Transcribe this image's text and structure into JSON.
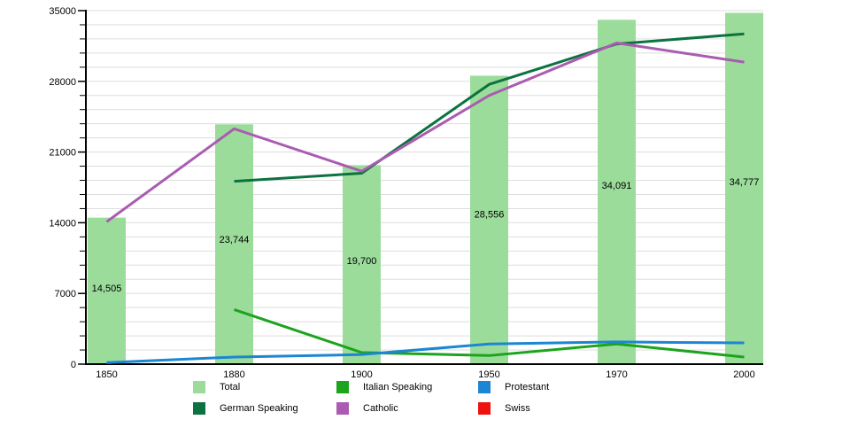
{
  "chart_data": {
    "type": "combo_bar_line",
    "title": "",
    "xlabel": "",
    "ylabel": "",
    "categories": [
      "1850",
      "1880",
      "1900",
      "1950",
      "1970",
      "2000"
    ],
    "bar_series": {
      "name": "Total",
      "color": "#9bdc9b",
      "values": [
        14505,
        23744,
        19700,
        28556,
        34091,
        34777
      ],
      "value_labels": [
        "14,505",
        "23,744",
        "19,700",
        "28,556",
        "34,091",
        "34,777"
      ]
    },
    "line_series": [
      {
        "name": "German Speaking",
        "color": "#0c7240",
        "values": [
          null,
          18100,
          18900,
          27700,
          31700,
          32700
        ]
      },
      {
        "name": "Italian Speaking",
        "color": "#1ca41c",
        "values": [
          null,
          5400,
          1150,
          850,
          2000,
          700
        ]
      },
      {
        "name": "Catholic",
        "color": "#a95cb0",
        "values": [
          14100,
          23300,
          19100,
          26600,
          31800,
          29900
        ]
      },
      {
        "name": "Protestant",
        "color": "#1c86d2",
        "values": [
          150,
          700,
          950,
          2000,
          2200,
          2100
        ]
      },
      {
        "name": "Swiss",
        "color": "#ee1111",
        "values": [
          null,
          null,
          null,
          null,
          null,
          null
        ]
      }
    ],
    "ylim": [
      0,
      35000
    ],
    "yticks": [
      0,
      7000,
      14000,
      21000,
      28000,
      35000
    ],
    "minor_tick_step": 1400,
    "grid": true,
    "legend_position": "bottom",
    "legend_order": [
      "Total",
      "German Speaking",
      "Italian Speaking",
      "Catholic",
      "Protestant",
      "Swiss"
    ]
  },
  "colors": {
    "background": "#ffffff",
    "grid": "#dddddd",
    "axis": "#000000",
    "text": "#000000"
  }
}
